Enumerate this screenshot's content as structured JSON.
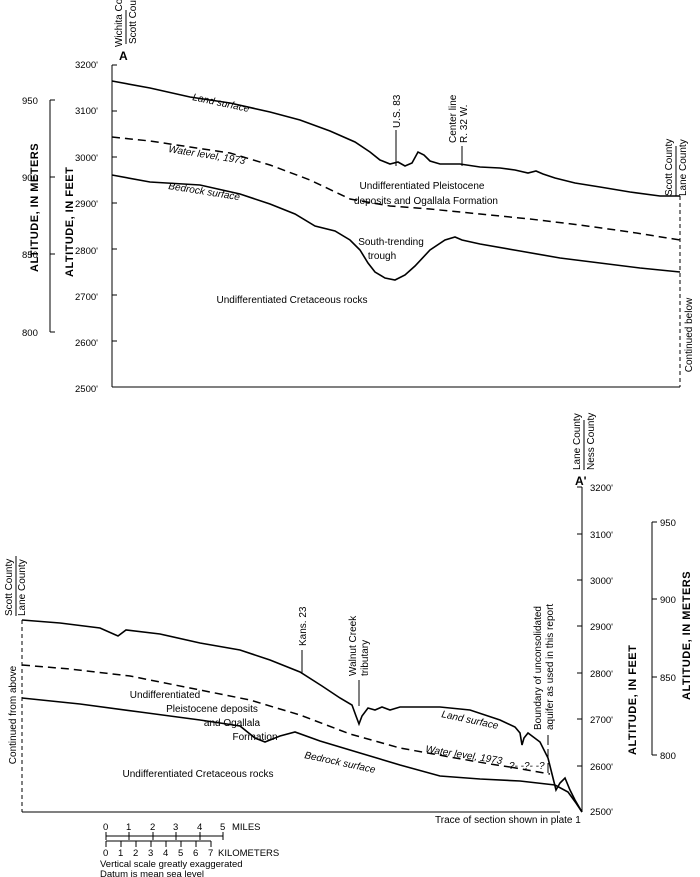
{
  "section_start": "A",
  "section_end": "A'",
  "counties": {
    "wichita": "Wichita County",
    "scott": "Scott County",
    "lane": "Lane County",
    "ness": "Ness County"
  },
  "axes": {
    "feet_title": "ALTITUDE, IN FEET",
    "meters_title": "ALTITUDE, IN METERS",
    "feet_ticks": [
      "3200'",
      "3100'",
      "3000'",
      "2900'",
      "2800'",
      "2700'",
      "2600'",
      "2500'"
    ],
    "meter_ticks": [
      "950",
      "900",
      "850",
      "800"
    ]
  },
  "top_panel": {
    "land_surface": "Land surface",
    "water_level": "Water level, 1973",
    "bedrock_surface": "Bedrock surface",
    "us83": "U.S. 83",
    "center_line_1": "Center line",
    "center_line_2": "R. 32 W.",
    "pleistocene_1": "Undifferentiated Pleistocene",
    "pleistocene_2": "deposits and Ogallala Formation",
    "trough_1": "South-trending",
    "trough_2": "trough",
    "cretaceous": "Undifferentiated Cretaceous rocks",
    "continued_below": "Continued below"
  },
  "bottom_panel": {
    "continued_from_above": "Continued from above",
    "kans23": "Kans. 23",
    "walnut_1": "Walnut Creek",
    "walnut_2": "tributary",
    "boundary_1": "Boundary of unconsolidated",
    "boundary_2": "aquifer as used in this report",
    "pleistocene_1": "Undifferentiated",
    "pleistocene_2": "Pleistocene deposits",
    "pleistocene_3": "and Ogallala",
    "pleistocene_4": "Formation",
    "land_surface": "Land surface",
    "water_level": "Water level, 1973",
    "question_marks": "?- -?- -?",
    "bedrock_surface": "Bedrock surface",
    "cretaceous": "Undifferentiated Cretaceous rocks",
    "trace_note": "Trace of section shown in plate 1"
  },
  "scale": {
    "mile_ticks": [
      "0",
      "1",
      "2",
      "3",
      "4",
      "5"
    ],
    "miles_label": "MILES",
    "km_ticks": [
      "0",
      "1",
      "2",
      "3",
      "4",
      "5",
      "6",
      "7"
    ],
    "km_label": "KILOMETERS",
    "note_1": "Vertical scale greatly exaggerated",
    "note_2": "Datum is mean sea level"
  }
}
